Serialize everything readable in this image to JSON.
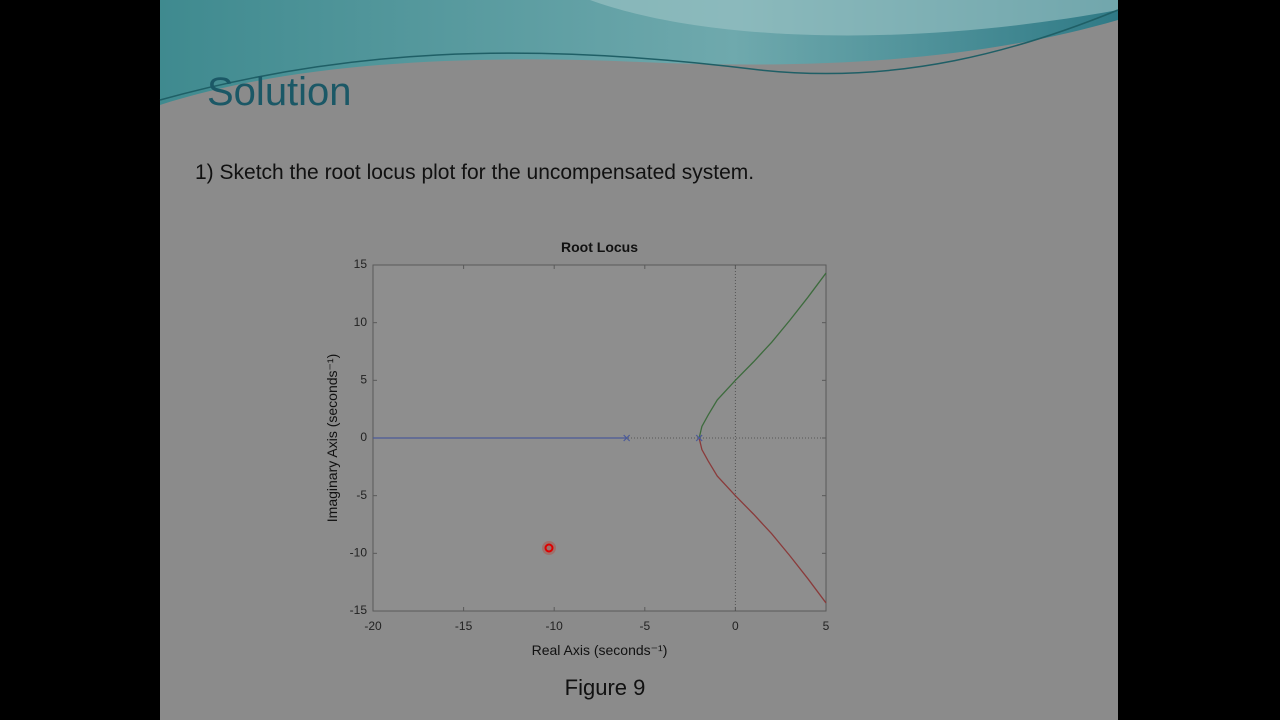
{
  "slide": {
    "title": "Solution",
    "text": "1) Sketch the root locus plot for the uncompensated system.",
    "caption": "Figure 9"
  },
  "chart_data": {
    "type": "line",
    "title": "Root Locus",
    "x_label": "Real Axis (seconds⁻¹)",
    "y_label": "Imaginary Axis (seconds⁻¹)",
    "xlim": [
      -20,
      5
    ],
    "ylim": [
      -15,
      15
    ],
    "xticks": [
      -20,
      -15,
      -10,
      -5,
      0,
      5
    ],
    "yticks": [
      -15,
      -10,
      -5,
      0,
      5,
      10,
      15
    ],
    "series": [
      {
        "color": "#4b5a99",
        "x": [
          -6,
          -20
        ],
        "values": [
          0,
          0
        ]
      },
      {
        "color": "#3d6b3d",
        "x": [
          -2,
          -1.85,
          -1.5,
          -1,
          0,
          1,
          2,
          3,
          4,
          5
        ],
        "values": [
          0,
          1,
          2,
          3.3,
          5,
          6.6,
          8.3,
          10.2,
          12.2,
          14.3
        ]
      },
      {
        "color": "#8a3b3b",
        "x": [
          -2,
          -1.85,
          -1.5,
          -1,
          0,
          1,
          2,
          3,
          4,
          5
        ],
        "values": [
          0,
          -1,
          -2,
          -3.3,
          -5,
          -6.6,
          -8.3,
          -10.2,
          -12.2,
          -14.3
        ]
      }
    ],
    "poles": {
      "x": [
        -6,
        -2
      ],
      "values": [
        0,
        0
      ]
    }
  }
}
